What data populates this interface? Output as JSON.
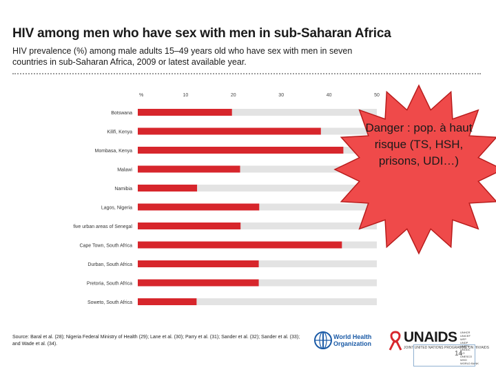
{
  "title": "HIV among men who have sex with men in sub-Saharan Africa",
  "subtitle": "HIV prevalence (%) among male adults 15–49 years old who have sex with men in seven countries in sub-Saharan Africa, 2009 or latest available year.",
  "callout": "Danger : pop. à haut risque (TS, HSH, prisons, UDI…)",
  "source": "Source: Baral et al. (28); Nigeria Federal Ministry of Health (29); Lane et al. (30); Parry et al. (31); Sander et al. (32); Sander et al. (33); and Wade et al. (34).",
  "logos": {
    "who_line1": "World Health",
    "who_line2": "Organization",
    "unaids": "UNAIDS",
    "unaids_tagline": "JOINT UNITED NATIONS PROGRAMME ON HIV/AIDS",
    "unaids_cosponsors": [
      "UNHCR",
      "UNICEF",
      "WFP",
      "UNDP",
      "UNFPA",
      "UNODC",
      "ILO",
      "UNESCO",
      "WHO",
      "WORLD BANK"
    ]
  },
  "page_number": "14",
  "colors": {
    "bar": "#d7262c",
    "grid": "#e3e3e3",
    "star": "#ef4a4a",
    "star_stroke": "#b81c1c"
  },
  "chart_data": {
    "type": "bar",
    "orientation": "horizontal",
    "axis_unit_label": "%",
    "xlim": [
      0,
      50
    ],
    "xticks": [
      10,
      20,
      30,
      40,
      50
    ],
    "categories": [
      "Botswana",
      "Kilifi, Kenya",
      "Mombasa, Kenya",
      "Malawi",
      "Namibia",
      "Lagos, Nigeria",
      "five urban areas of Senegal",
      "Cape Town, South Africa",
      "Durban, South Africa",
      "Pretoria, South Africa",
      "Soweto, South Africa"
    ],
    "values": [
      19.7,
      38.3,
      43.0,
      21.4,
      12.4,
      25.4,
      21.5,
      42.7,
      25.3,
      25.3,
      12.3
    ]
  }
}
